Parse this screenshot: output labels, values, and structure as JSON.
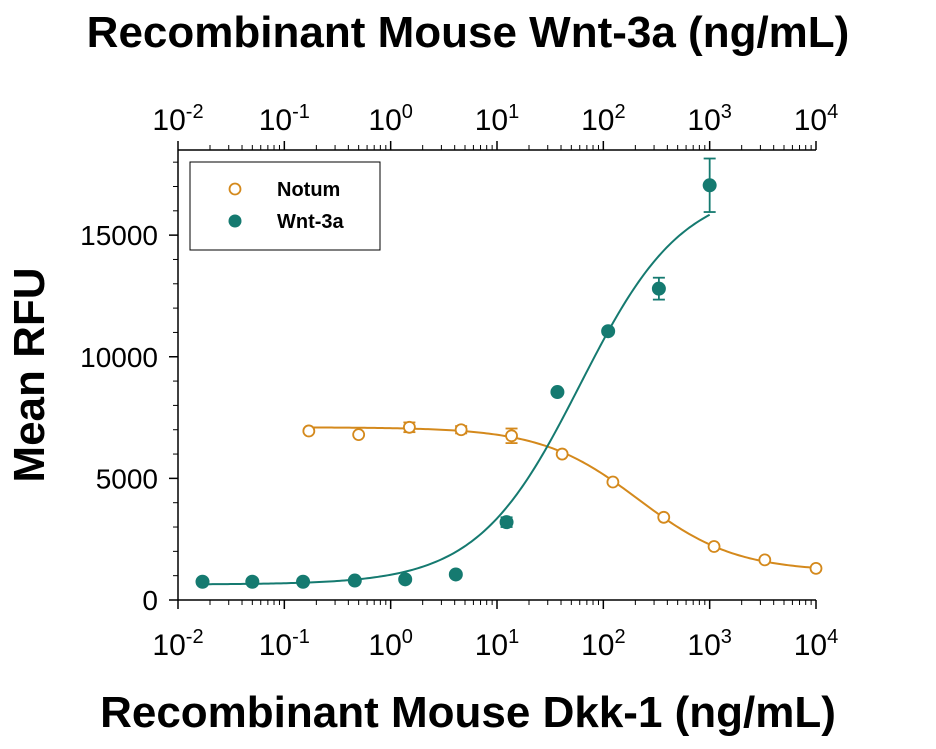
{
  "chart_data": {
    "type": "scatter",
    "title": "Recombinant Mouse Wnt-3a (ng/mL)",
    "xlabel": "Recombinant Mouse Dkk-1 (ng/mL)",
    "ylabel": "Mean RFU",
    "x_scale": "log",
    "xlim": [
      0.01,
      10000
    ],
    "ylim": [
      0,
      18500
    ],
    "x_tick_values": [
      0.01,
      0.1,
      1,
      10,
      100,
      1000,
      10000
    ],
    "x_tick_labels": [
      "10-2",
      "10-1",
      "100",
      "101",
      "102",
      "103",
      "104"
    ],
    "y_tick_values": [
      0,
      5000,
      10000,
      15000
    ],
    "y_tick_labels": [
      "0",
      "5000",
      "10000",
      "15000"
    ],
    "legend_placement": "top-left",
    "grid": false,
    "series": [
      {
        "name": "Notum",
        "color": "#D4891C",
        "marker": "open-circle",
        "fit": "four-parameter-logistic",
        "x": [
          0.17,
          0.5,
          1.5,
          4.6,
          13.7,
          41,
          123,
          370,
          1100,
          3300,
          10000
        ],
        "y": [
          6950,
          6800,
          7100,
          7000,
          6750,
          6000,
          4850,
          3400,
          2200,
          1650,
          1300
        ],
        "error": [
          0,
          0,
          200,
          150,
          300,
          0,
          0,
          0,
          0,
          0,
          0
        ]
      },
      {
        "name": "Wnt-3a",
        "color": "#157A70",
        "marker": "filled-circle",
        "fit": "four-parameter-logistic",
        "x": [
          0.017,
          0.05,
          0.15,
          0.46,
          1.37,
          4.1,
          12.3,
          37,
          111,
          333,
          1000
        ],
        "y": [
          750,
          750,
          750,
          800,
          850,
          1050,
          3200,
          8550,
          11050,
          12800,
          17050
        ],
        "error": [
          0,
          0,
          0,
          0,
          0,
          0,
          200,
          0,
          0,
          450,
          1100
        ]
      }
    ]
  }
}
